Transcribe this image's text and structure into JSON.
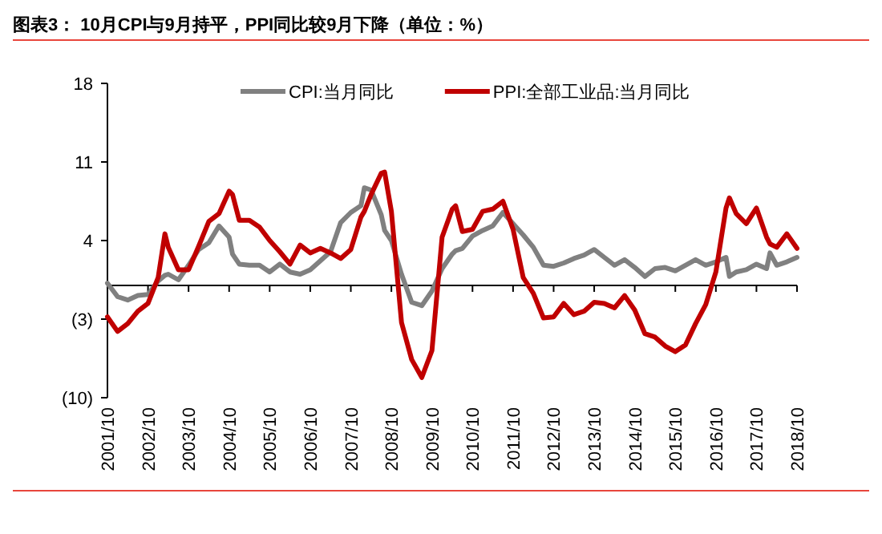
{
  "chart_data": {
    "type": "line",
    "title": "图表3：  10月CPI与9月持平，PPI同比较9月下降（单位：%）",
    "x": [
      "2001-10",
      "2002-01",
      "2002-04",
      "2002-07",
      "2002-10",
      "2003-01",
      "2003-03",
      "2003-04",
      "2003-07",
      "2003-10",
      "2004-01",
      "2004-04",
      "2004-07",
      "2004-10",
      "2004-11",
      "2005-01",
      "2005-04",
      "2005-07",
      "2005-10",
      "2006-01",
      "2006-04",
      "2006-07",
      "2006-10",
      "2007-01",
      "2007-04",
      "2007-07",
      "2007-10",
      "2008-01",
      "2008-02",
      "2008-04",
      "2008-07",
      "2008-08",
      "2008-10",
      "2009-01",
      "2009-04",
      "2009-07",
      "2009-10",
      "2010-01",
      "2010-04",
      "2010-05",
      "2010-07",
      "2010-10",
      "2011-01",
      "2011-04",
      "2011-07",
      "2011-10",
      "2012-01",
      "2012-04",
      "2012-07",
      "2012-10",
      "2013-01",
      "2013-04",
      "2013-07",
      "2013-10",
      "2014-01",
      "2014-04",
      "2014-07",
      "2014-10",
      "2015-01",
      "2015-04",
      "2015-07",
      "2015-10",
      "2016-01",
      "2016-04",
      "2016-07",
      "2016-10",
      "2017-01",
      "2017-02",
      "2017-04",
      "2017-07",
      "2017-10",
      "2018-01",
      "2018-02",
      "2018-04",
      "2018-07",
      "2018-10"
    ],
    "series": [
      {
        "name": "CPI:当月同比",
        "color": "#808080",
        "values": [
          0.2,
          -1.0,
          -1.3,
          -0.9,
          -0.8,
          0.4,
          0.9,
          1.0,
          0.5,
          1.8,
          3.2,
          3.8,
          5.3,
          4.3,
          2.8,
          1.9,
          1.8,
          1.8,
          1.2,
          1.9,
          1.2,
          1.0,
          1.4,
          2.2,
          3.0,
          5.6,
          6.5,
          7.1,
          8.7,
          8.5,
          6.3,
          4.9,
          4.0,
          1.0,
          -1.5,
          -1.8,
          -0.5,
          1.5,
          2.8,
          3.1,
          3.3,
          4.4,
          4.9,
          5.3,
          6.5,
          5.5,
          4.5,
          3.4,
          1.8,
          1.7,
          2.0,
          2.4,
          2.7,
          3.2,
          2.5,
          1.8,
          2.3,
          1.6,
          0.8,
          1.5,
          1.6,
          1.3,
          1.8,
          2.3,
          1.8,
          2.1,
          2.5,
          0.8,
          1.2,
          1.4,
          1.9,
          1.5,
          2.9,
          1.8,
          2.1,
          2.5
        ]
      },
      {
        "name": "PPI:全部工业品:当月同比",
        "color": "#c00000",
        "values": [
          -2.8,
          -4.1,
          -3.4,
          -2.3,
          -1.6,
          0.7,
          4.6,
          3.4,
          1.4,
          1.4,
          3.5,
          5.7,
          6.4,
          8.4,
          8.1,
          5.8,
          5.8,
          5.2,
          4.0,
          3.0,
          1.9,
          3.6,
          2.9,
          3.3,
          2.9,
          2.4,
          3.2,
          6.1,
          6.6,
          8.1,
          10.0,
          10.1,
          6.6,
          -3.3,
          -6.6,
          -8.2,
          -5.8,
          4.3,
          6.8,
          7.1,
          4.8,
          5.0,
          6.6,
          6.8,
          7.5,
          5.0,
          0.7,
          -0.7,
          -2.9,
          -2.8,
          -1.6,
          -2.6,
          -2.3,
          -1.5,
          -1.6,
          -2.0,
          -0.9,
          -2.2,
          -4.3,
          -4.6,
          -5.4,
          -5.9,
          -5.3,
          -3.4,
          -1.7,
          1.2,
          6.9,
          7.8,
          6.4,
          5.5,
          6.9,
          4.3,
          3.7,
          3.4,
          4.6,
          3.3
        ]
      }
    ],
    "xlim": [
      "2001-10",
      "2018-10"
    ],
    "xticks": [
      {
        "value": "2001-10",
        "label": "2001/10"
      },
      {
        "value": "2002-10",
        "label": "2002/10"
      },
      {
        "value": "2003-10",
        "label": "2003/10"
      },
      {
        "value": "2004-10",
        "label": "2004/10"
      },
      {
        "value": "2005-10",
        "label": "2005/10"
      },
      {
        "value": "2006-10",
        "label": "2006/10"
      },
      {
        "value": "2007-10",
        "label": "2007/10"
      },
      {
        "value": "2008-10",
        "label": "2008/10"
      },
      {
        "value": "2009-10",
        "label": "2009/10"
      },
      {
        "value": "2010-10",
        "label": "2010/10"
      },
      {
        "value": "2011-10",
        "label": "2011/10"
      },
      {
        "value": "2012-10",
        "label": "2012/10"
      },
      {
        "value": "2013-10",
        "label": "2013/10"
      },
      {
        "value": "2014-10",
        "label": "2014/10"
      },
      {
        "value": "2015-10",
        "label": "2015/10"
      },
      {
        "value": "2016-10",
        "label": "2016/10"
      },
      {
        "value": "2017-10",
        "label": "2017/10"
      },
      {
        "value": "2018-10",
        "label": "2018/10"
      }
    ],
    "ylim": [
      -10,
      18
    ],
    "yticks": [
      {
        "value": -10,
        "label": "(10)"
      },
      {
        "value": -3,
        "label": "(3)"
      },
      4,
      11,
      18
    ],
    "legend": "top",
    "marker": "none",
    "line_style": "solid"
  }
}
